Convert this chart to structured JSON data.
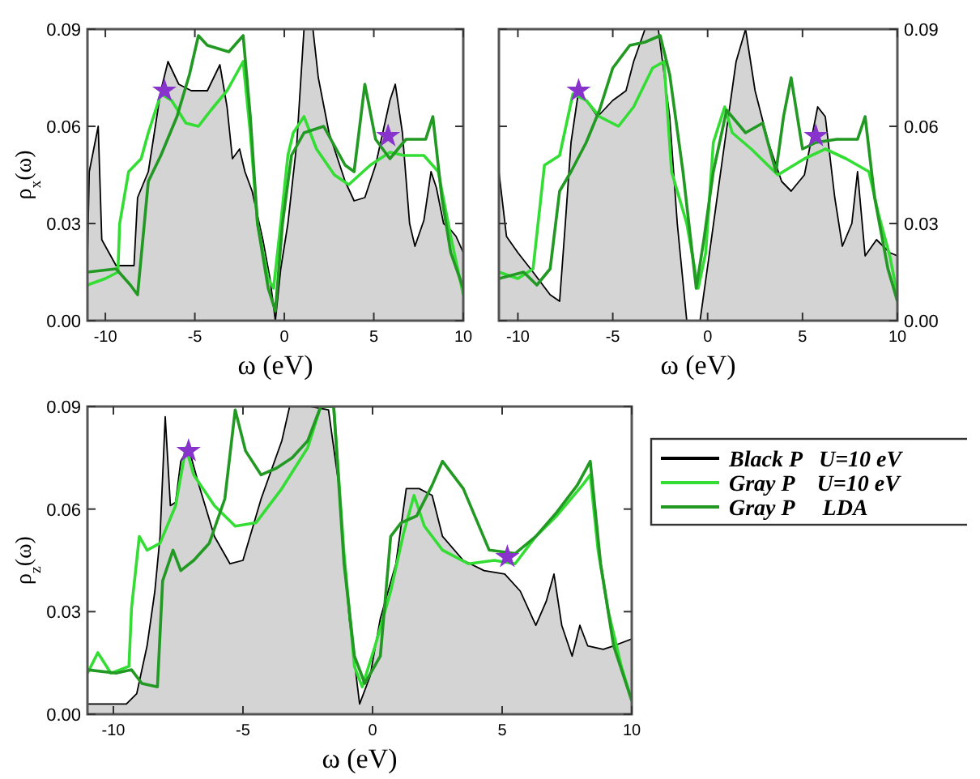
{
  "chart_data": [
    {
      "type": "line",
      "xlabel": "ω (eV)",
      "ylabel": "ρ$_{x}$(ω)",
      "xlim": [
        -11,
        10
      ],
      "xticks": [
        -10,
        -5,
        0,
        5,
        10
      ],
      "ylim": [
        0,
        0.09
      ],
      "yticks": [
        {
          "value": 0,
          "label": "0.00"
        },
        {
          "value": 0.03,
          "label": "0.03"
        },
        {
          "value": 0.06,
          "label": "0.06"
        },
        {
          "value": 0.09,
          "label": "0.09"
        }
      ],
      "grid": false,
      "line_style": "solid",
      "series": [
        {
          "type": "area",
          "color": "#000000",
          "x": [
            -11,
            -10.9,
            -10.4,
            -10.2,
            -9.4,
            -8.4,
            -8.2,
            -7.6,
            -6.9,
            -6.5,
            -5.9,
            -5.2,
            -4.3,
            -3.6,
            -3.2,
            -2.9,
            -2.5,
            -2.2,
            -1.8,
            -1.2,
            -0.8,
            -0.5,
            -0.2,
            0.2,
            0.7,
            1.1,
            1.6,
            1.9,
            2.5,
            3.4,
            3.9,
            4.5,
            5.1,
            5.9,
            6.2,
            6.6,
            7.0,
            7.3,
            7.8,
            8.2,
            8.5,
            8.9,
            9.3,
            9.6,
            10
          ],
          "values": [
            0.02,
            0.046,
            0.06,
            0.025,
            0.017,
            0.017,
            0.038,
            0.046,
            0.071,
            0.08,
            0.073,
            0.071,
            0.071,
            0.079,
            0.066,
            0.05,
            0.053,
            0.046,
            0.04,
            0.025,
            0.013,
            0.0,
            0.016,
            0.03,
            0.055,
            0.09,
            0.09,
            0.075,
            0.058,
            0.043,
            0.037,
            0.038,
            0.048,
            0.068,
            0.073,
            0.058,
            0.03,
            0.023,
            0.031,
            0.046,
            0.041,
            0.03,
            0.028,
            0.026,
            0.021
          ]
        },
        {
          "type": "line",
          "color": "#33dd33",
          "x": [
            -11,
            -10,
            -9.3,
            -9.2,
            -8.7,
            -8.0,
            -7.6,
            -6.9,
            -6.3,
            -5.5,
            -4.8,
            -4.1,
            -3.2,
            -2.3,
            -1.9,
            -1.5,
            -0.9,
            -0.6,
            -0.2,
            0.2,
            0.5,
            1.1,
            1.8,
            2.8,
            3.6,
            4.8,
            5.9,
            6.7,
            7.8,
            8.6,
            9.3,
            10
          ],
          "values": [
            0.011,
            0.013,
            0.015,
            0.03,
            0.046,
            0.05,
            0.058,
            0.07,
            0.068,
            0.061,
            0.06,
            0.065,
            0.071,
            0.08,
            0.058,
            0.03,
            0.013,
            0.01,
            0.03,
            0.051,
            0.058,
            0.063,
            0.053,
            0.045,
            0.042,
            0.048,
            0.052,
            0.051,
            0.051,
            0.046,
            0.026,
            0.008
          ]
        },
        {
          "type": "line",
          "color": "#229922",
          "x": [
            -11,
            -9.4,
            -8.6,
            -8.2,
            -7.6,
            -6.9,
            -6.0,
            -5.3,
            -4.8,
            -4.3,
            -3.1,
            -2.3,
            -1.9,
            -1.5,
            -0.9,
            -0.5,
            -0.1,
            0.4,
            1.1,
            2.2,
            3.4,
            3.9,
            4.5,
            5.1,
            5.9,
            6.8,
            7.9,
            8.3,
            8.8,
            9.3,
            10
          ],
          "values": [
            0.015,
            0.016,
            0.011,
            0.008,
            0.043,
            0.051,
            0.063,
            0.076,
            0.088,
            0.085,
            0.083,
            0.088,
            0.063,
            0.03,
            0.01,
            0.003,
            0.03,
            0.051,
            0.058,
            0.06,
            0.048,
            0.046,
            0.073,
            0.056,
            0.05,
            0.056,
            0.056,
            0.063,
            0.038,
            0.021,
            0.01
          ]
        },
        {
          "type": "scatter",
          "marker": "star",
          "color": "#8833cc",
          "x": [
            -6.7,
            5.8
          ],
          "values": [
            0.071,
            0.057
          ]
        }
      ]
    },
    {
      "type": "line",
      "xlabel": "ω (eV)",
      "xlim": [
        -11,
        10
      ],
      "xticks": [
        -10,
        -5,
        0,
        5,
        10
      ],
      "ylim": [
        0,
        0.09
      ],
      "yticks": [
        {
          "value": 0,
          "label": "0.00"
        },
        {
          "value": 0.03,
          "label": "0.03"
        },
        {
          "value": 0.06,
          "label": "0.06"
        },
        {
          "value": 0.09,
          "label": "0.09"
        }
      ],
      "grid": false,
      "line_style": "solid",
      "series": [
        {
          "type": "area",
          "color": "#000000",
          "x": [
            -11,
            -10.6,
            -10.0,
            -9.2,
            -8.3,
            -7.8,
            -7.5,
            -7.2,
            -6.8,
            -6.4,
            -5.8,
            -5.0,
            -4.3,
            -3.9,
            -3.3,
            -2.6,
            -2.0,
            -1.6,
            -1.1,
            -0.4,
            0.1,
            0.9,
            1.5,
            2.0,
            2.5,
            3.2,
            3.9,
            4.4,
            5.1,
            5.8,
            6.2,
            6.7,
            7.1,
            7.6,
            7.9,
            8.3,
            8.9,
            9.6,
            10
          ],
          "values": [
            0.046,
            0.026,
            0.021,
            0.015,
            0.008,
            0.006,
            0.03,
            0.055,
            0.071,
            0.068,
            0.063,
            0.068,
            0.071,
            0.08,
            0.09,
            0.09,
            0.063,
            0.03,
            0.0,
            0.0,
            0.021,
            0.055,
            0.08,
            0.09,
            0.071,
            0.055,
            0.043,
            0.04,
            0.045,
            0.066,
            0.063,
            0.038,
            0.023,
            0.03,
            0.046,
            0.02,
            0.025,
            0.021,
            0.02
          ]
        },
        {
          "type": "line",
          "color": "#33dd33",
          "x": [
            -11,
            -10.0,
            -9.2,
            -8.6,
            -7.8,
            -7.1,
            -6.4,
            -5.7,
            -4.7,
            -3.9,
            -2.9,
            -2.3,
            -1.9,
            -1.1,
            -0.5,
            -0.1,
            0.3,
            0.9,
            1.3,
            2.3,
            3.7,
            5.1,
            6.2,
            7.3,
            8.5,
            9.0,
            9.6,
            10
          ],
          "values": [
            0.015,
            0.013,
            0.016,
            0.048,
            0.051,
            0.07,
            0.068,
            0.063,
            0.06,
            0.066,
            0.078,
            0.08,
            0.046,
            0.03,
            0.01,
            0.021,
            0.055,
            0.066,
            0.058,
            0.053,
            0.045,
            0.05,
            0.053,
            0.05,
            0.046,
            0.033,
            0.02,
            0.008
          ]
        },
        {
          "type": "line",
          "color": "#229922",
          "x": [
            -11,
            -9.7,
            -9.0,
            -8.3,
            -7.8,
            -7.2,
            -6.4,
            -5.7,
            -5.0,
            -4.1,
            -3.3,
            -2.5,
            -2.0,
            -1.3,
            -0.6,
            -0.2,
            0.3,
            1.0,
            2.0,
            2.9,
            3.6,
            4.0,
            4.4,
            5.0,
            5.7,
            6.8,
            7.9,
            8.3,
            8.8,
            9.5,
            10
          ],
          "values": [
            0.013,
            0.015,
            0.011,
            0.016,
            0.04,
            0.046,
            0.055,
            0.065,
            0.078,
            0.085,
            0.086,
            0.088,
            0.076,
            0.046,
            0.01,
            0.025,
            0.046,
            0.065,
            0.058,
            0.061,
            0.046,
            0.063,
            0.075,
            0.053,
            0.055,
            0.056,
            0.056,
            0.063,
            0.038,
            0.016,
            0.006
          ]
        },
        {
          "type": "scatter",
          "marker": "star",
          "color": "#8833cc",
          "x": [
            -6.8,
            5.7
          ],
          "values": [
            0.071,
            0.057
          ]
        }
      ]
    },
    {
      "type": "line",
      "xlabel": "ω (eV)",
      "ylabel": "ρ$_{z}$(ω)",
      "xlim": [
        -11,
        10
      ],
      "xticks": [
        -10,
        -5,
        0,
        5,
        10
      ],
      "ylim": [
        0,
        0.09
      ],
      "yticks": [
        {
          "value": 0,
          "label": "0.00"
        },
        {
          "value": 0.03,
          "label": "0.03"
        },
        {
          "value": 0.06,
          "label": "0.06"
        },
        {
          "value": 0.09,
          "label": "0.09"
        }
      ],
      "grid": false,
      "line_style": "solid",
      "legend": "right",
      "series": [
        {
          "name": "Black P   U=10 eV",
          "type": "area",
          "color": "#000000",
          "x": [
            -11,
            -9.5,
            -9.1,
            -8.7,
            -8.4,
            -8.2,
            -8.0,
            -7.8,
            -7.6,
            -7.4,
            -7.1,
            -6.7,
            -6.1,
            -5.5,
            -5.0,
            -4.3,
            -3.5,
            -3.2,
            -2.9,
            -2.4,
            -1.7,
            -1.3,
            -0.9,
            -0.5,
            -0.1,
            0.3,
            0.9,
            1.3,
            1.8,
            2.3,
            2.7,
            3.5,
            4.3,
            5.1,
            5.7,
            6.3,
            6.7,
            7.0,
            7.3,
            7.7,
            8.0,
            8.3,
            8.9,
            9.3,
            10
          ],
          "values": [
            0.003,
            0.003,
            0.006,
            0.02,
            0.036,
            0.052,
            0.087,
            0.061,
            0.062,
            0.074,
            0.078,
            0.067,
            0.052,
            0.044,
            0.045,
            0.063,
            0.08,
            0.09,
            0.09,
            0.09,
            0.089,
            0.067,
            0.028,
            0.003,
            0.011,
            0.028,
            0.044,
            0.066,
            0.066,
            0.064,
            0.052,
            0.045,
            0.042,
            0.041,
            0.036,
            0.026,
            0.033,
            0.041,
            0.026,
            0.017,
            0.026,
            0.02,
            0.019,
            0.02,
            0.022
          ]
        },
        {
          "name": "Gray P    U=10 eV",
          "type": "line",
          "color": "#33dd33",
          "x": [
            -11,
            -10.6,
            -10.1,
            -9.4,
            -9.3,
            -9.0,
            -8.7,
            -8.2,
            -7.6,
            -7.2,
            -6.9,
            -6.1,
            -5.3,
            -4.5,
            -3.5,
            -2.5,
            -2.0,
            -1.5,
            -1.1,
            -0.7,
            -0.4,
            0.1,
            0.7,
            1.2,
            1.6,
            2.0,
            2.7,
            3.7,
            4.7,
            5.5,
            6.3,
            7.1,
            8.1,
            8.4,
            8.7,
            9.1,
            9.6,
            10
          ],
          "values": [
            0.012,
            0.018,
            0.012,
            0.014,
            0.031,
            0.052,
            0.048,
            0.05,
            0.061,
            0.078,
            0.07,
            0.061,
            0.055,
            0.056,
            0.066,
            0.078,
            0.09,
            0.09,
            0.047,
            0.014,
            0.008,
            0.02,
            0.036,
            0.053,
            0.064,
            0.055,
            0.048,
            0.044,
            0.045,
            0.044,
            0.052,
            0.058,
            0.067,
            0.07,
            0.048,
            0.03,
            0.014,
            0.004
          ]
        },
        {
          "name": "Gray P     LDA",
          "type": "line",
          "color": "#229922",
          "x": [
            -11,
            -9.9,
            -9.3,
            -8.9,
            -8.3,
            -8.1,
            -7.7,
            -7.4,
            -6.9,
            -6.3,
            -5.7,
            -5.3,
            -4.9,
            -4.3,
            -3.7,
            -3.1,
            -2.5,
            -2.0,
            -1.5,
            -1.1,
            -0.7,
            -0.3,
            0.3,
            0.7,
            1.1,
            1.7,
            2.3,
            2.7,
            3.5,
            4.5,
            5.5,
            6.3,
            7.1,
            7.9,
            8.4,
            8.8,
            9.3,
            10
          ],
          "values": [
            0.013,
            0.012,
            0.013,
            0.009,
            0.008,
            0.039,
            0.048,
            0.042,
            0.045,
            0.05,
            0.063,
            0.089,
            0.077,
            0.07,
            0.072,
            0.075,
            0.08,
            0.09,
            0.09,
            0.044,
            0.017,
            0.009,
            0.017,
            0.052,
            0.056,
            0.058,
            0.067,
            0.074,
            0.066,
            0.048,
            0.047,
            0.052,
            0.059,
            0.067,
            0.074,
            0.044,
            0.02,
            0.004
          ]
        },
        {
          "type": "scatter",
          "marker": "star",
          "color": "#8833cc",
          "x": [
            -7.1,
            5.2
          ],
          "values": [
            0.077,
            0.046
          ]
        }
      ]
    }
  ]
}
